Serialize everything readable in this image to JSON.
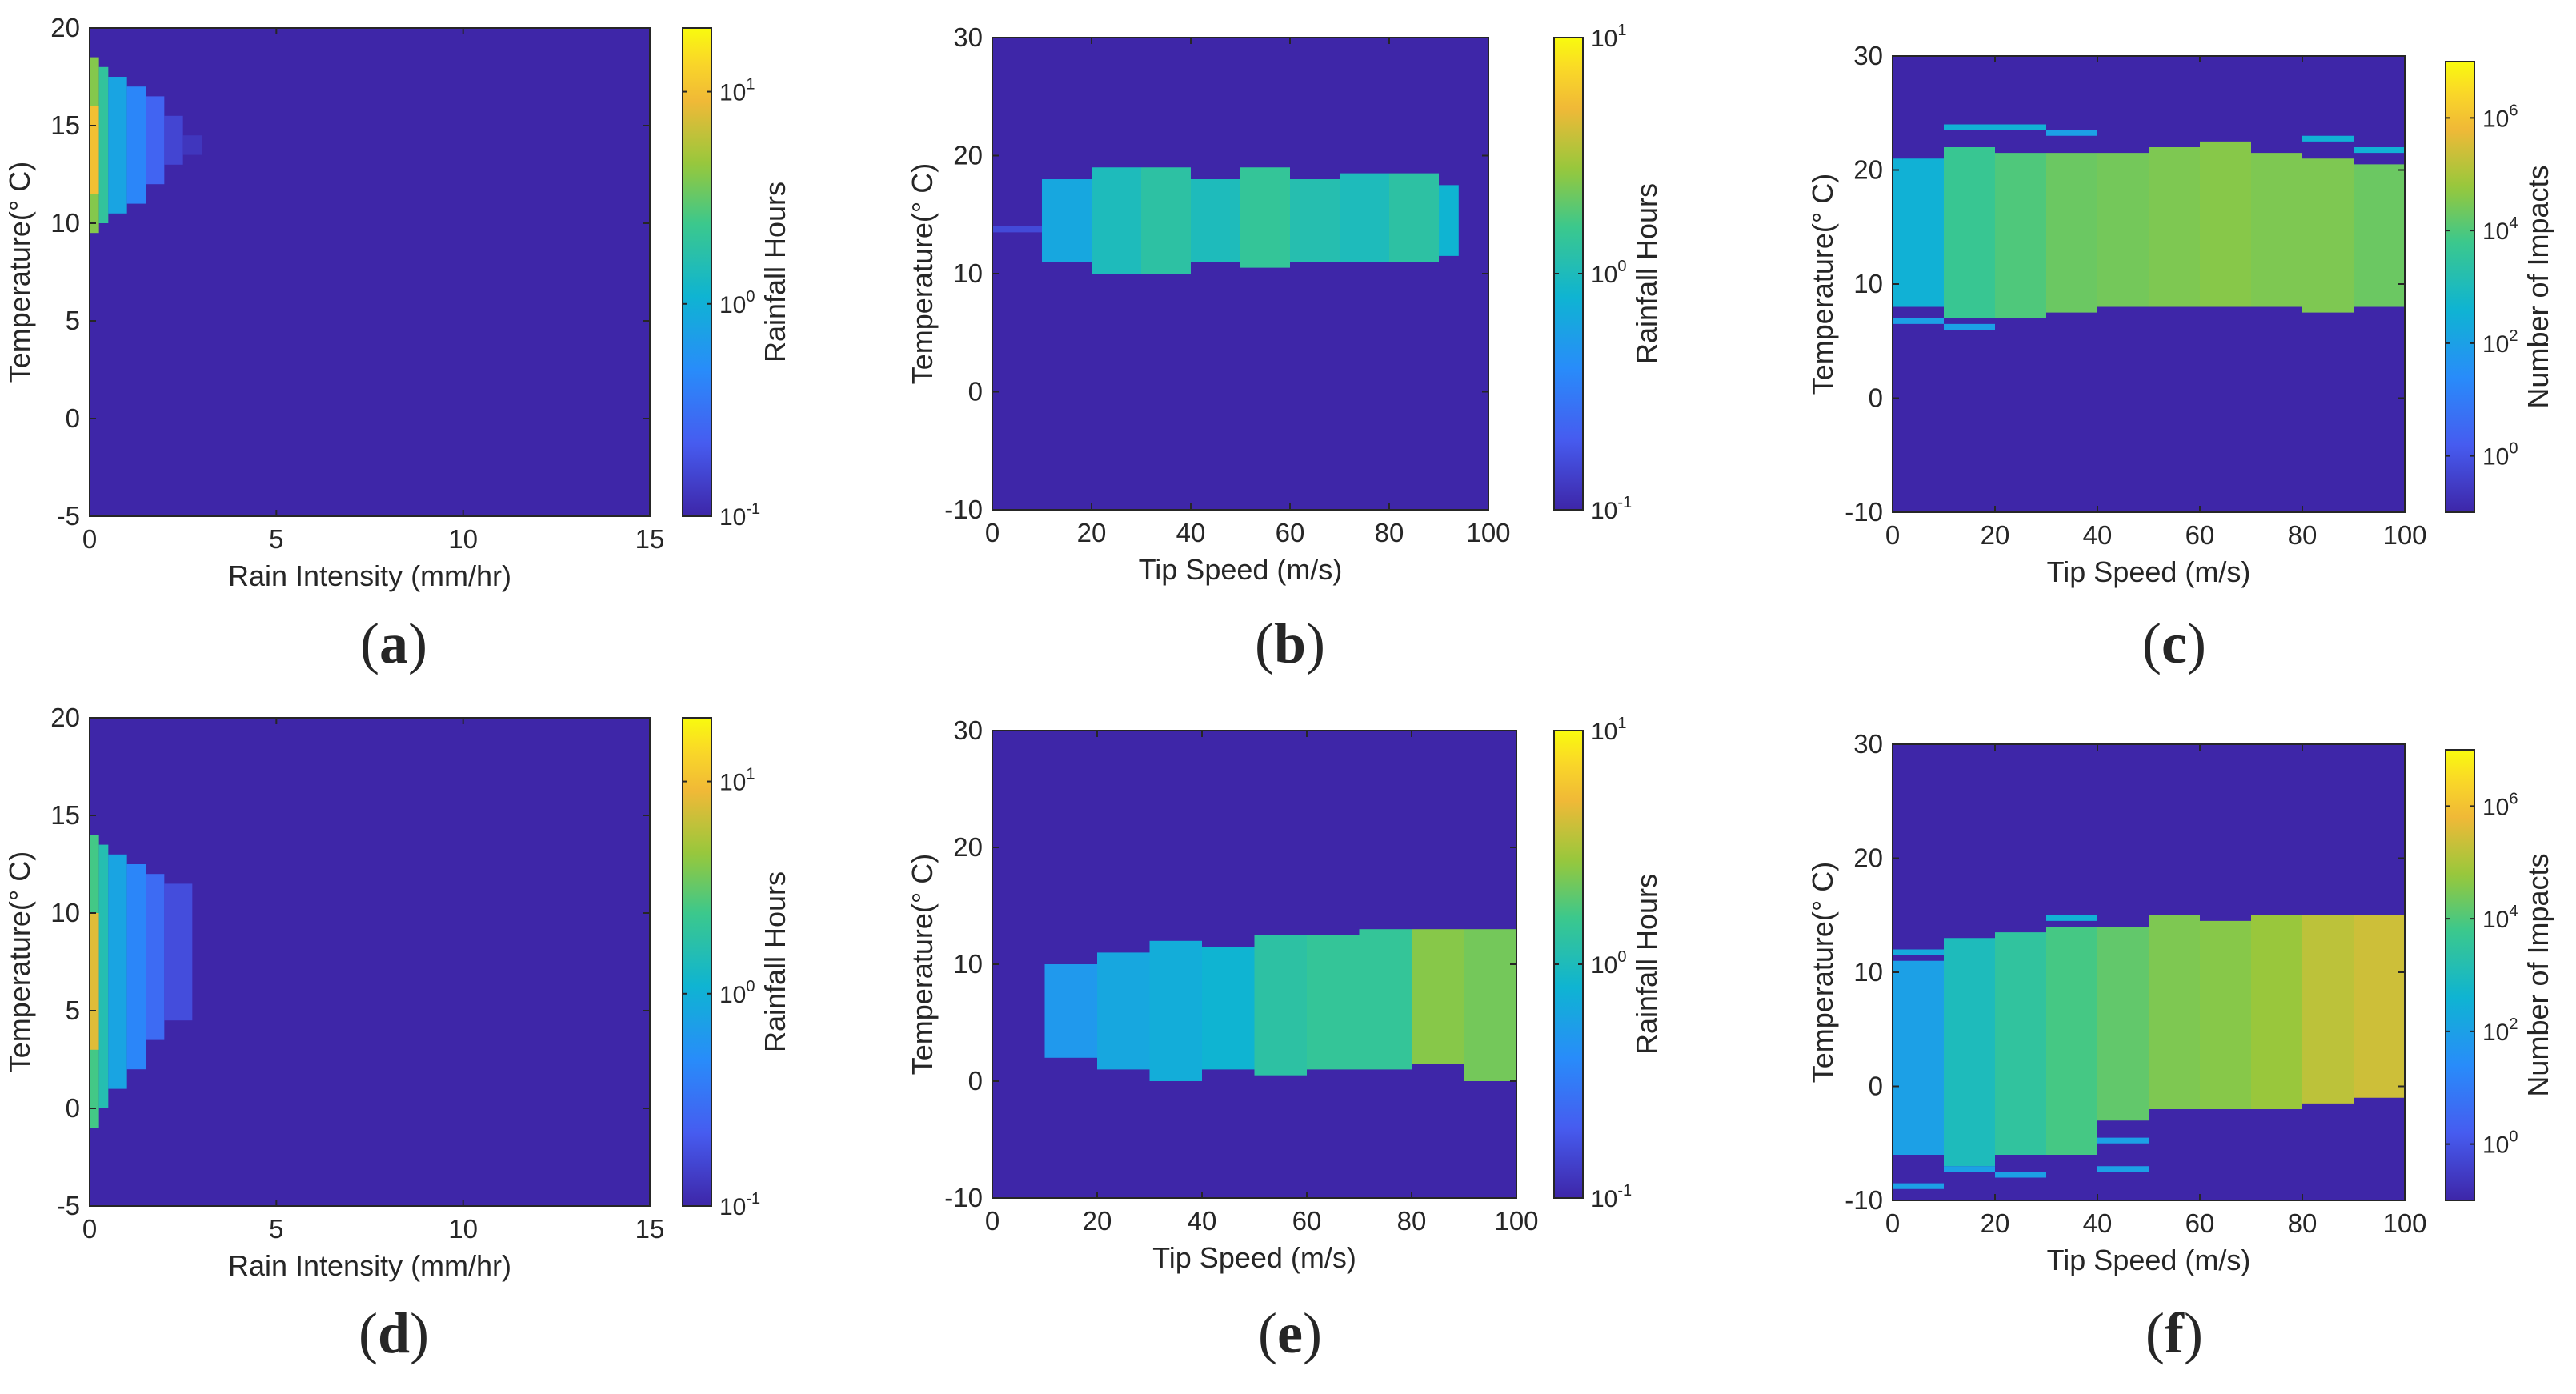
{
  "chart_data": [
    {
      "type": "heatmap",
      "panel": "a",
      "panel_label": "(a)",
      "xlabel": "Rain Intensity (mm/hr)",
      "ylabel": "Temperature(° C)",
      "xlim": [
        0,
        15
      ],
      "ylim": [
        -5,
        20
      ],
      "xticks": [
        0,
        5,
        10,
        15
      ],
      "xtick_labels": [
        "0",
        "5",
        "10",
        "15"
      ],
      "yticks": [
        -5,
        0,
        5,
        10,
        15,
        20
      ],
      "ytick_labels": [
        "-5",
        "0",
        "5",
        "10",
        "15",
        "20"
      ],
      "colorbar": {
        "label": "Rainfall Hours",
        "scale": "log",
        "clim_log10": [
          -1,
          1.3
        ],
        "ticks": [
          {
            "base": "10",
            "exp": "-1"
          },
          {
            "base": "10",
            "exp": "0"
          },
          {
            "base": "10",
            "exp": "1"
          }
        ]
      },
      "background_value_log10": -1,
      "cells": [
        {
          "x0": 0,
          "x1": 0.25,
          "y0": 9.5,
          "y1": 18.5,
          "v_log10": 0.6
        },
        {
          "x0": 0,
          "x1": 0.25,
          "y0": 11.5,
          "y1": 16,
          "v_log10": 1.0
        },
        {
          "x0": 0.25,
          "x1": 0.5,
          "y0": 10,
          "y1": 18,
          "v_log10": 0.3
        },
        {
          "x0": 0.5,
          "x1": 1.0,
          "y0": 10.5,
          "y1": 17.5,
          "v_log10": -0.1
        },
        {
          "x0": 1.0,
          "x1": 1.5,
          "y0": 11,
          "y1": 17,
          "v_log10": -0.35
        },
        {
          "x0": 1.5,
          "x1": 2.0,
          "y0": 12,
          "y1": 16.5,
          "v_log10": -0.6
        },
        {
          "x0": 2.0,
          "x1": 2.5,
          "y0": 13,
          "y1": 15.5,
          "v_log10": -0.8
        },
        {
          "x0": 2.5,
          "x1": 3.0,
          "y0": 13.5,
          "y1": 14.5,
          "v_log10": -0.9
        }
      ]
    },
    {
      "type": "heatmap",
      "panel": "b",
      "panel_label": "(b)",
      "xlabel": "Tip Speed (m/s)",
      "ylabel": "Temperature(° C)",
      "xlim": [
        0,
        100
      ],
      "ylim": [
        -10,
        30
      ],
      "xticks": [
        0,
        20,
        40,
        60,
        80,
        100
      ],
      "xtick_labels": [
        "0",
        "20",
        "40",
        "60",
        "80",
        "100"
      ],
      "yticks": [
        -10,
        0,
        10,
        20,
        30
      ],
      "ytick_labels": [
        "-10",
        "0",
        "10",
        "20",
        "30"
      ],
      "colorbar": {
        "label": "Rainfall Hours",
        "scale": "log",
        "clim_log10": [
          -1,
          1
        ],
        "ticks": [
          {
            "base": "10",
            "exp": "-1"
          },
          {
            "base": "10",
            "exp": "0"
          },
          {
            "base": "10",
            "exp": "1"
          }
        ]
      },
      "background_value_log10": -1,
      "cells": [
        {
          "x0": 0,
          "x1": 10,
          "y0": 13.5,
          "y1": 14,
          "v_log10": -0.8
        },
        {
          "x0": 10,
          "x1": 20,
          "y0": 11,
          "y1": 18,
          "v_log10": -0.2
        },
        {
          "x0": 20,
          "x1": 30,
          "y0": 10,
          "y1": 19,
          "v_log10": 0.0
        },
        {
          "x0": 30,
          "x1": 40,
          "y0": 10,
          "y1": 19,
          "v_log10": 0.1
        },
        {
          "x0": 40,
          "x1": 50,
          "y0": 11,
          "y1": 18,
          "v_log10": 0.0
        },
        {
          "x0": 50,
          "x1": 60,
          "y0": 10.5,
          "y1": 19,
          "v_log10": 0.15
        },
        {
          "x0": 60,
          "x1": 70,
          "y0": 11,
          "y1": 18,
          "v_log10": 0.05
        },
        {
          "x0": 70,
          "x1": 80,
          "y0": 11,
          "y1": 18.5,
          "v_log10": 0.0
        },
        {
          "x0": 80,
          "x1": 90,
          "y0": 11,
          "y1": 18.5,
          "v_log10": 0.1
        },
        {
          "x0": 90,
          "x1": 94,
          "y0": 11.5,
          "y1": 17.5,
          "v_log10": -0.1
        }
      ]
    },
    {
      "type": "heatmap",
      "panel": "c",
      "panel_label": "(c)",
      "xlabel": "Tip Speed (m/s)",
      "ylabel": "Temperature(° C)",
      "xlim": [
        0,
        100
      ],
      "ylim": [
        -10,
        30
      ],
      "xticks": [
        0,
        20,
        40,
        60,
        80,
        100
      ],
      "xtick_labels": [
        "0",
        "20",
        "40",
        "60",
        "80",
        "100"
      ],
      "yticks": [
        -10,
        0,
        10,
        20,
        30
      ],
      "ytick_labels": [
        "-10",
        "0",
        "10",
        "20",
        "30"
      ],
      "colorbar": {
        "label": "Number of Impacts",
        "scale": "log",
        "clim_log10": [
          -1,
          7
        ],
        "ticks": [
          {
            "base": "10",
            "exp": "0"
          },
          {
            "base": "10",
            "exp": "2"
          },
          {
            "base": "10",
            "exp": "4"
          },
          {
            "base": "10",
            "exp": "6"
          }
        ]
      },
      "background_value_log10": -1,
      "cells": [
        {
          "x0": 0,
          "x1": 10,
          "y0": 8,
          "y1": 21,
          "v_log10": 2.5
        },
        {
          "x0": 10,
          "x1": 20,
          "y0": 7,
          "y1": 22,
          "v_log10": 3.7
        },
        {
          "x0": 20,
          "x1": 30,
          "y0": 7,
          "y1": 21.5,
          "v_log10": 4.0
        },
        {
          "x0": 30,
          "x1": 40,
          "y0": 7.5,
          "y1": 21.5,
          "v_log10": 4.3
        },
        {
          "x0": 40,
          "x1": 50,
          "y0": 8,
          "y1": 21.5,
          "v_log10": 4.4
        },
        {
          "x0": 50,
          "x1": 60,
          "y0": 8,
          "y1": 22,
          "v_log10": 4.5
        },
        {
          "x0": 60,
          "x1": 70,
          "y0": 8,
          "y1": 22.5,
          "v_log10": 4.6
        },
        {
          "x0": 70,
          "x1": 80,
          "y0": 8,
          "y1": 21.5,
          "v_log10": 4.5
        },
        {
          "x0": 80,
          "x1": 90,
          "y0": 7.5,
          "y1": 21,
          "v_log10": 4.5
        },
        {
          "x0": 90,
          "x1": 100,
          "y0": 8,
          "y1": 20.5,
          "v_log10": 4.3
        },
        {
          "x0": 0,
          "x1": 10,
          "y0": 6.5,
          "y1": 7,
          "v_log10": 2.0
        },
        {
          "x0": 10,
          "x1": 20,
          "y0": 6,
          "y1": 6.5,
          "v_log10": 2.0
        },
        {
          "x0": 10,
          "x1": 20,
          "y0": 23.5,
          "y1": 24,
          "v_log10": 2.5
        },
        {
          "x0": 20,
          "x1": 30,
          "y0": 23.5,
          "y1": 24,
          "v_log10": 2.5
        },
        {
          "x0": 30,
          "x1": 40,
          "y0": 23,
          "y1": 23.5,
          "v_log10": 2.0
        },
        {
          "x0": 80,
          "x1": 90,
          "y0": 22.5,
          "y1": 23,
          "v_log10": 2.5
        },
        {
          "x0": 90,
          "x1": 100,
          "y0": 21.5,
          "y1": 22,
          "v_log10": 2.5
        }
      ]
    },
    {
      "type": "heatmap",
      "panel": "d",
      "panel_label": "(d)",
      "xlabel": "Rain Intensity (mm/hr)",
      "ylabel": "Temperature(° C)",
      "xlim": [
        0,
        15
      ],
      "ylim": [
        -5,
        20
      ],
      "xticks": [
        0,
        5,
        10,
        15
      ],
      "xtick_labels": [
        "0",
        "5",
        "10",
        "15"
      ],
      "yticks": [
        -5,
        0,
        5,
        10,
        15,
        20
      ],
      "ytick_labels": [
        "-5",
        "0",
        "5",
        "10",
        "15",
        "20"
      ],
      "colorbar": {
        "label": "Rainfall Hours",
        "scale": "log",
        "clim_log10": [
          -1,
          1.3
        ],
        "ticks": [
          {
            "base": "10",
            "exp": "-1"
          },
          {
            "base": "10",
            "exp": "0"
          },
          {
            "base": "10",
            "exp": "1"
          }
        ]
      },
      "background_value_log10": -1,
      "cells": [
        {
          "x0": 0,
          "x1": 0.25,
          "y0": -1,
          "y1": 14,
          "v_log10": 0.4
        },
        {
          "x0": 0,
          "x1": 0.25,
          "y0": 3,
          "y1": 10,
          "v_log10": 0.9
        },
        {
          "x0": 0.25,
          "x1": 0.5,
          "y0": 0,
          "y1": 13.5,
          "v_log10": 0.2
        },
        {
          "x0": 0.5,
          "x1": 1.0,
          "y0": 1,
          "y1": 13,
          "v_log10": -0.1
        },
        {
          "x0": 1.0,
          "x1": 1.5,
          "y0": 2,
          "y1": 12.5,
          "v_log10": -0.35
        },
        {
          "x0": 1.5,
          "x1": 2.0,
          "y0": 3.5,
          "y1": 12,
          "v_log10": -0.55
        },
        {
          "x0": 2.0,
          "x1": 2.75,
          "y0": 4.5,
          "y1": 11.5,
          "v_log10": -0.75
        }
      ]
    },
    {
      "type": "heatmap",
      "panel": "e",
      "panel_label": "(e)",
      "xlabel": "Tip Speed (m/s)",
      "ylabel": "Temperature(° C)",
      "xlim": [
        0,
        100
      ],
      "ylim": [
        -10,
        30
      ],
      "xticks": [
        0,
        20,
        40,
        60,
        80,
        100
      ],
      "xtick_labels": [
        "0",
        "20",
        "40",
        "60",
        "80",
        "100"
      ],
      "yticks": [
        -10,
        0,
        10,
        20,
        30
      ],
      "ytick_labels": [
        "-10",
        "0",
        "10",
        "20",
        "30"
      ],
      "colorbar": {
        "label": "Rainfall Hours",
        "scale": "log",
        "clim_log10": [
          -1,
          1
        ],
        "ticks": [
          {
            "base": "10",
            "exp": "-1"
          },
          {
            "base": "10",
            "exp": "0"
          },
          {
            "base": "10",
            "exp": "1"
          }
        ]
      },
      "background_value_log10": -1,
      "cells": [
        {
          "x0": 10,
          "x1": 20,
          "y0": 2,
          "y1": 10,
          "v_log10": -0.3
        },
        {
          "x0": 20,
          "x1": 30,
          "y0": 1,
          "y1": 11,
          "v_log10": -0.2
        },
        {
          "x0": 30,
          "x1": 40,
          "y0": 0,
          "y1": 12,
          "v_log10": -0.15
        },
        {
          "x0": 40,
          "x1": 50,
          "y0": 1,
          "y1": 11.5,
          "v_log10": -0.1
        },
        {
          "x0": 50,
          "x1": 60,
          "y0": 0.5,
          "y1": 12.5,
          "v_log10": 0.1
        },
        {
          "x0": 60,
          "x1": 70,
          "y0": 1,
          "y1": 12.5,
          "v_log10": 0.15
        },
        {
          "x0": 70,
          "x1": 80,
          "y0": 1,
          "y1": 13,
          "v_log10": 0.15
        },
        {
          "x0": 80,
          "x1": 90,
          "y0": 1.5,
          "y1": 13,
          "v_log10": 0.4
        },
        {
          "x0": 90,
          "x1": 100,
          "y0": 0,
          "y1": 13,
          "v_log10": 0.35
        }
      ]
    },
    {
      "type": "heatmap",
      "panel": "f",
      "panel_label": "(f)",
      "xlabel": "Tip Speed (m/s)",
      "ylabel": "Temperature(° C)",
      "xlim": [
        0,
        100
      ],
      "ylim": [
        -10,
        30
      ],
      "xticks": [
        0,
        20,
        40,
        60,
        80,
        100
      ],
      "xtick_labels": [
        "0",
        "20",
        "40",
        "60",
        "80",
        "100"
      ],
      "yticks": [
        -10,
        0,
        10,
        20,
        30
      ],
      "ytick_labels": [
        "-10",
        "0",
        "10",
        "20",
        "30"
      ],
      "colorbar": {
        "label": "Number of Impacts",
        "scale": "log",
        "clim_log10": [
          -1,
          7
        ],
        "ticks": [
          {
            "base": "10",
            "exp": "0"
          },
          {
            "base": "10",
            "exp": "2"
          },
          {
            "base": "10",
            "exp": "4"
          },
          {
            "base": "10",
            "exp": "6"
          }
        ]
      },
      "background_value_log10": -1,
      "cells": [
        {
          "x0": 0,
          "x1": 10,
          "y0": -6,
          "y1": 11,
          "v_log10": 2.0
        },
        {
          "x0": 10,
          "x1": 20,
          "y0": -7,
          "y1": 13,
          "v_log10": 3.0
        },
        {
          "x0": 20,
          "x1": 30,
          "y0": -6,
          "y1": 13.5,
          "v_log10": 3.5
        },
        {
          "x0": 30,
          "x1": 40,
          "y0": -6,
          "y1": 14,
          "v_log10": 3.9
        },
        {
          "x0": 40,
          "x1": 50,
          "y0": -3,
          "y1": 14,
          "v_log10": 4.2
        },
        {
          "x0": 50,
          "x1": 60,
          "y0": -2,
          "y1": 15,
          "v_log10": 4.5
        },
        {
          "x0": 60,
          "x1": 70,
          "y0": -2,
          "y1": 14.5,
          "v_log10": 4.6
        },
        {
          "x0": 70,
          "x1": 80,
          "y0": -2,
          "y1": 15,
          "v_log10": 4.8
        },
        {
          "x0": 80,
          "x1": 90,
          "y0": -1.5,
          "y1": 15,
          "v_log10": 5.2
        },
        {
          "x0": 90,
          "x1": 100,
          "y0": -1,
          "y1": 15,
          "v_log10": 5.4
        },
        {
          "x0": 0,
          "x1": 10,
          "y0": -9,
          "y1": -8.5,
          "v_log10": 2.0
        },
        {
          "x0": 10,
          "x1": 20,
          "y0": -7.5,
          "y1": -7,
          "v_log10": 2.0
        },
        {
          "x0": 20,
          "x1": 30,
          "y0": -8,
          "y1": -7.5,
          "v_log10": 2.0
        },
        {
          "x0": 30,
          "x1": 40,
          "y0": 14.5,
          "y1": 15,
          "v_log10": 2.5
        },
        {
          "x0": 40,
          "x1": 50,
          "y0": -5,
          "y1": -4.5,
          "v_log10": 2.0
        },
        {
          "x0": 40,
          "x1": 50,
          "y0": -7.5,
          "y1": -7,
          "v_log10": 2.0
        },
        {
          "x0": 0,
          "x1": 10,
          "y0": 11.5,
          "y1": 12,
          "v_log10": 2.3
        }
      ]
    }
  ]
}
